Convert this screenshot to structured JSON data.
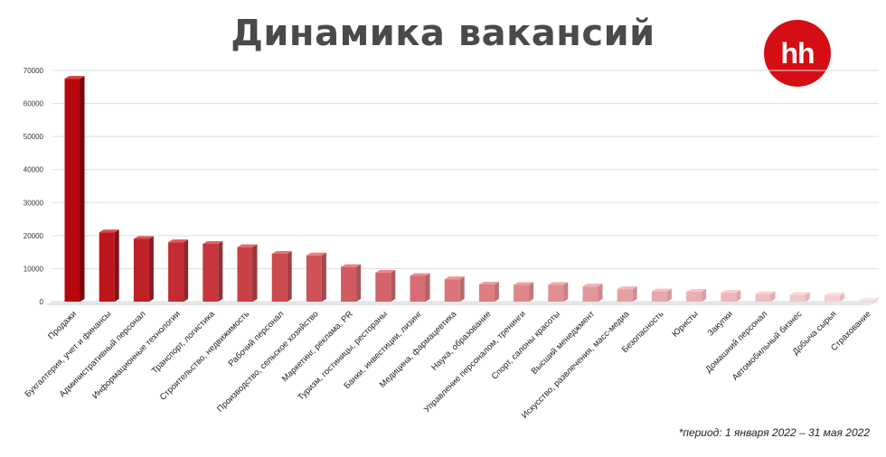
{
  "title": "Динамика вакансий",
  "logo_text": "hh",
  "footnote": "*период: 1 января 2022 – 31 мая 2022",
  "colors": {
    "brand_red": "#d40e14",
    "title_gray": "#4a4a4a"
  },
  "chart_data": {
    "type": "bar",
    "title": "Динамика вакансий",
    "xlabel": "",
    "ylabel": "",
    "ylim": [
      0,
      70000
    ],
    "yticks": [
      0,
      10000,
      20000,
      30000,
      40000,
      50000,
      60000,
      70000
    ],
    "grid": true,
    "legend": "none",
    "categories": [
      "Продажи",
      "Бухгалтерия, учет и финансы",
      "Административный персонал",
      "Информационные технологии",
      "Транспорт, логистика",
      "Строительство, недвижимость",
      "Рабочий персонал",
      "Производство, сельское хозяйство",
      "Маркетинг, реклама, PR",
      "Туризм, гостиницы, рестораны",
      "Банки, инвестиции, лизинг",
      "Медицина, фармацевтика",
      "Наука, образование",
      "Управление персоналом, тренинги",
      "Спорт, салоны красоты",
      "Высший менеджмент",
      "Искусство, развлечения, масс-медиа",
      "Безопасность",
      "Юристы",
      "Закупки",
      "Домашний персонал",
      "Автомобильный бизнес",
      "Добыча сырья",
      "Страхование"
    ],
    "values": [
      67500,
      21000,
      19000,
      18000,
      17500,
      16500,
      14500,
      14000,
      10500,
      8800,
      7800,
      6800,
      5200,
      5100,
      5100,
      4600,
      3800,
      3100,
      3000,
      2700,
      2300,
      2100,
      1900,
      400
    ]
  }
}
